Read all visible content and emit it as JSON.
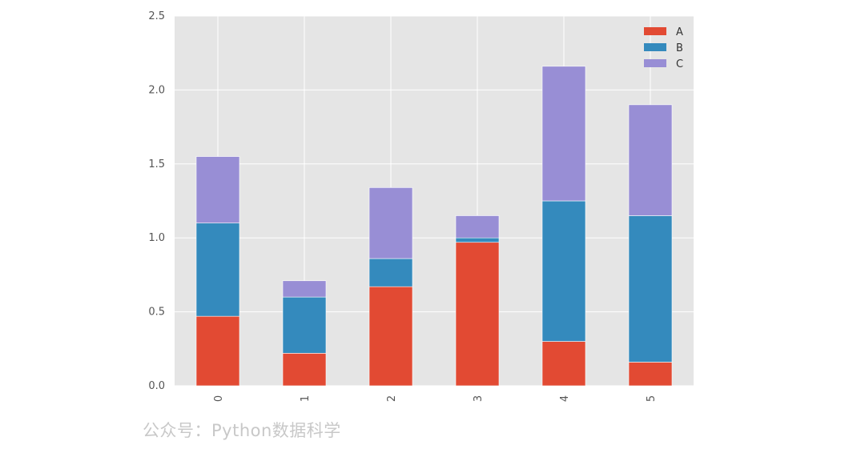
{
  "chart_data": {
    "type": "bar",
    "stacked": true,
    "categories": [
      "0",
      "1",
      "2",
      "3",
      "4",
      "5"
    ],
    "series": [
      {
        "name": "A",
        "color": "#e24a33",
        "values": [
          0.47,
          0.22,
          0.67,
          0.97,
          0.3,
          0.16
        ]
      },
      {
        "name": "B",
        "color": "#348abd",
        "values": [
          0.63,
          0.38,
          0.19,
          0.03,
          0.95,
          0.99
        ]
      },
      {
        "name": "C",
        "color": "#988ed5",
        "values": [
          0.45,
          0.11,
          0.48,
          0.15,
          0.91,
          0.75
        ]
      }
    ],
    "title": "",
    "xlabel": "",
    "ylabel": "",
    "ylim": [
      0,
      2.5
    ],
    "yticks": [
      "0.0",
      "0.5",
      "1.0",
      "1.5",
      "2.0",
      "2.5"
    ],
    "grid": true,
    "legend_position": "top-right",
    "background_color": "#e5e5e5",
    "grid_color": "#ffffff"
  },
  "watermark": "公众号：Python数据科学"
}
